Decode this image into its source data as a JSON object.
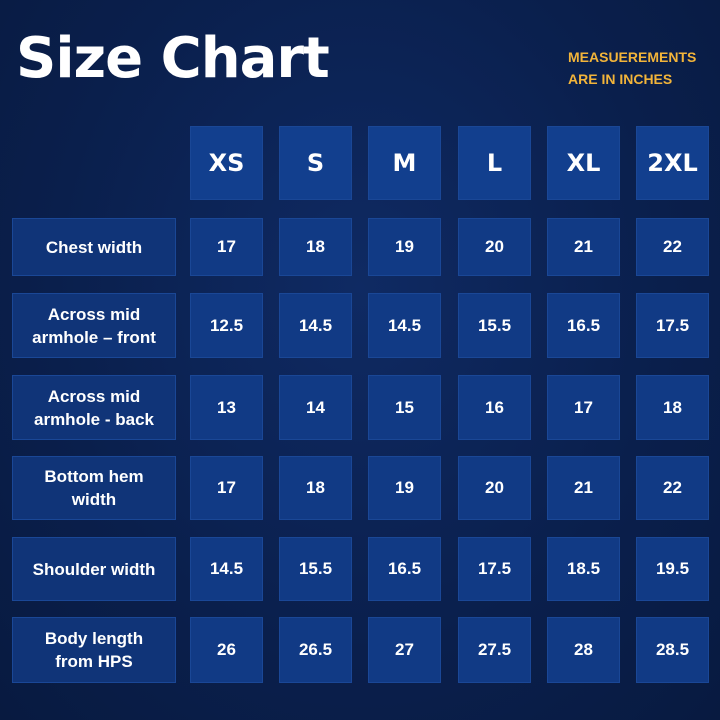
{
  "header": {
    "title": "Size Chart",
    "note": "MEASUEREMENTS ARE IN INCHES"
  },
  "table": {
    "columns": [
      "XS",
      "S",
      "M",
      "L",
      "XL",
      "2XL"
    ],
    "rows": [
      {
        "label": "Chest width",
        "values": [
          17,
          18,
          19,
          20,
          21,
          22
        ]
      },
      {
        "label": "Across mid armhole – front",
        "values": [
          12.5,
          14.5,
          14.5,
          15.5,
          16.5,
          17.5
        ]
      },
      {
        "label": "Across mid armhole - back",
        "values": [
          13,
          14,
          15,
          16,
          17,
          18
        ]
      },
      {
        "label": "Bottom hem width",
        "values": [
          17,
          18,
          19,
          20,
          21,
          22
        ]
      },
      {
        "label": "Shoulder width",
        "values": [
          14.5,
          15.5,
          16.5,
          17.5,
          18.5,
          19.5
        ]
      },
      {
        "label": "Body length from HPS",
        "values": [
          26,
          26.5,
          27,
          27.5,
          28,
          28.5
        ]
      }
    ]
  }
}
